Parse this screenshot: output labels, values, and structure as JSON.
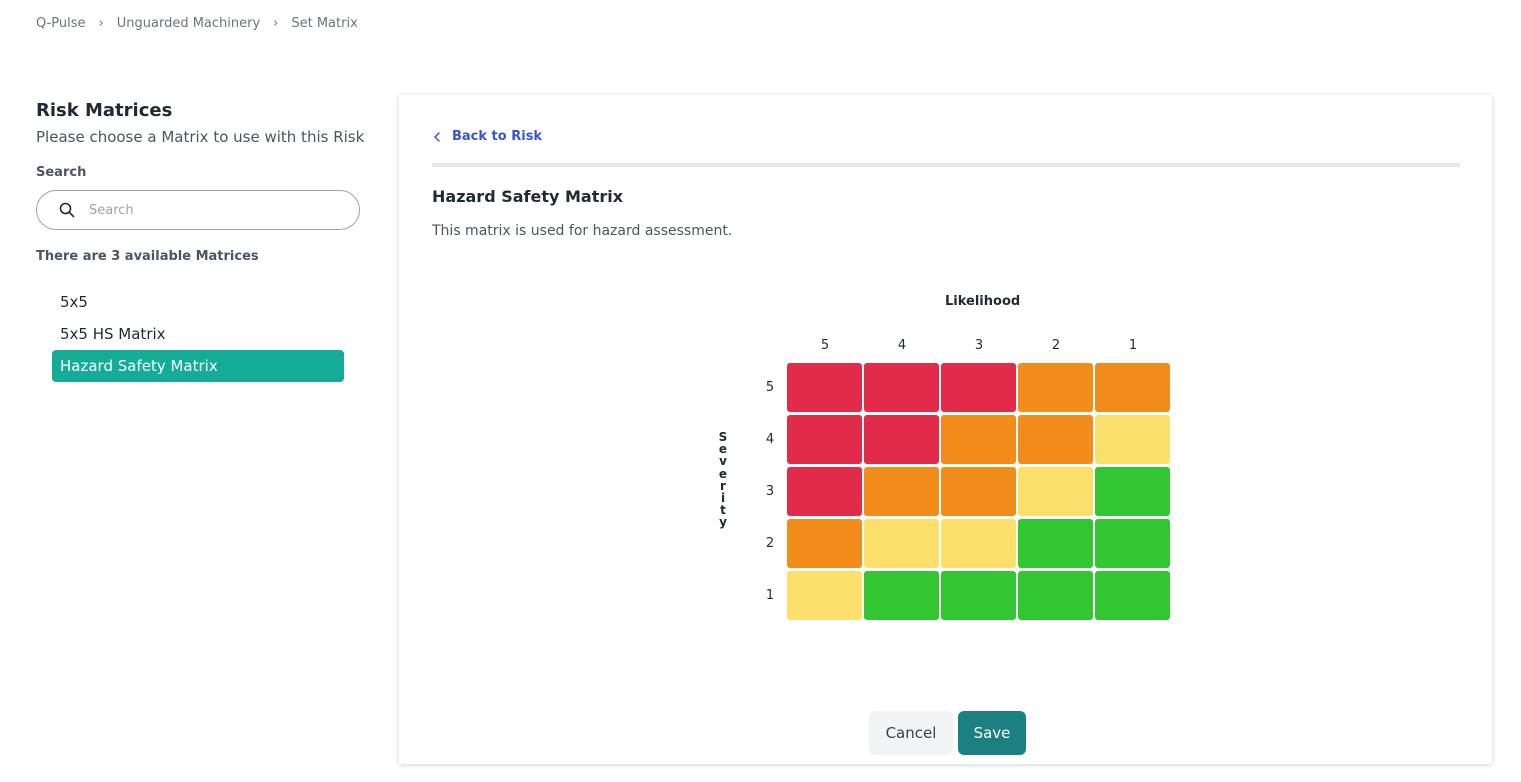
{
  "breadcrumb": [
    "Q-Pulse",
    "Unguarded Machinery",
    "Set Matrix"
  ],
  "left": {
    "title": "Risk Matrices",
    "subtitle": "Please choose a Matrix to use with this Risk",
    "search_label": "Search",
    "search_placeholder": "Search",
    "search_value": "",
    "count_text": "There are 3 available Matrices",
    "matrices": [
      "5x5",
      "5x5 HS Matrix",
      "Hazard Safety Matrix"
    ],
    "selected": "Hazard Safety Matrix"
  },
  "card": {
    "back_label": "Back to Risk",
    "title": "Hazard Safety Matrix",
    "description": "This matrix is used for hazard assessment."
  },
  "matrix": {
    "x_label": "Likelihood",
    "y_label": "Severity",
    "columns": [
      "5",
      "4",
      "3",
      "2",
      "1"
    ],
    "rows": [
      "5",
      "4",
      "3",
      "2",
      "1"
    ],
    "palette": {
      "red": "#e22b4b",
      "orange": "#f28c1a",
      "yellow": "#fde06b",
      "green": "#33c633"
    },
    "cells": [
      [
        "red",
        "red",
        "red",
        "orange",
        "orange"
      ],
      [
        "red",
        "red",
        "orange",
        "orange",
        "yellow"
      ],
      [
        "red",
        "orange",
        "orange",
        "yellow",
        "green"
      ],
      [
        "orange",
        "yellow",
        "yellow",
        "green",
        "green"
      ],
      [
        "yellow",
        "green",
        "green",
        "green",
        "green"
      ]
    ]
  },
  "buttons": {
    "cancel": "Cancel",
    "save": "Save"
  },
  "colors": {
    "accent": "#14ab97",
    "save_button": "#1d8080",
    "link": "#3b55c9"
  }
}
